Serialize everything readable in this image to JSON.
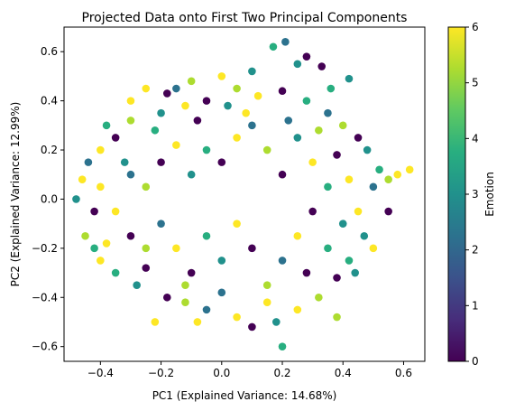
{
  "chart_data": {
    "type": "scatter",
    "title": "Projected Data onto First Two Principal Components",
    "xlabel": "PC1 (Explained Variance: 14.68%)",
    "ylabel": "PC2 (Explained Variance: 12.99%)",
    "xlim": [
      -0.52,
      0.67
    ],
    "ylim": [
      -0.66,
      0.7
    ],
    "xticks": [
      -0.4,
      -0.2,
      0.0,
      0.2,
      0.4,
      0.6
    ],
    "xtick_labels": [
      "−0.4",
      "−0.2",
      "0.0",
      "0.2",
      "0.4",
      "0.6"
    ],
    "yticks": [
      -0.6,
      -0.4,
      -0.2,
      0.0,
      0.2,
      0.4,
      0.6
    ],
    "ytick_labels": [
      "−0.6",
      "−0.4",
      "−0.2",
      "0.0",
      "0.2",
      "0.4",
      "0.6"
    ],
    "grid": false,
    "colorbar": {
      "label": "Emotion",
      "colormap": "viridis",
      "range": [
        0,
        6
      ],
      "ticks": [
        0,
        1,
        2,
        3,
        4,
        5,
        6
      ],
      "tick_labels": [
        "0",
        "1",
        "2",
        "3",
        "4",
        "5",
        "6"
      ]
    },
    "marker_shape": "circle",
    "points": [
      {
        "x": 0.21,
        "y": 0.64,
        "c": 2
      },
      {
        "x": 0.17,
        "y": 0.62,
        "c": 4
      },
      {
        "x": 0.0,
        "y": 0.5,
        "c": 6
      },
      {
        "x": -0.1,
        "y": 0.48,
        "c": 5
      },
      {
        "x": 0.42,
        "y": 0.49,
        "c": 3
      },
      {
        "x": 0.33,
        "y": 0.54,
        "c": 0
      },
      {
        "x": -0.3,
        "y": 0.4,
        "c": 6
      },
      {
        "x": -0.25,
        "y": 0.45,
        "c": 6
      },
      {
        "x": -0.18,
        "y": 0.43,
        "c": 0
      },
      {
        "x": 0.05,
        "y": 0.45,
        "c": 5
      },
      {
        "x": 0.1,
        "y": 0.52,
        "c": 3
      },
      {
        "x": 0.25,
        "y": 0.55,
        "c": 3
      },
      {
        "x": -0.38,
        "y": 0.3,
        "c": 4
      },
      {
        "x": -0.4,
        "y": 0.2,
        "c": 6
      },
      {
        "x": -0.44,
        "y": 0.15,
        "c": 2
      },
      {
        "x": -0.35,
        "y": 0.25,
        "c": 0
      },
      {
        "x": -0.3,
        "y": 0.32,
        "c": 5
      },
      {
        "x": -0.2,
        "y": 0.35,
        "c": 3
      },
      {
        "x": -0.12,
        "y": 0.38,
        "c": 6
      },
      {
        "x": -0.05,
        "y": 0.4,
        "c": 0
      },
      {
        "x": 0.02,
        "y": 0.38,
        "c": 3
      },
      {
        "x": 0.12,
        "y": 0.42,
        "c": 6
      },
      {
        "x": 0.2,
        "y": 0.44,
        "c": 0
      },
      {
        "x": 0.28,
        "y": 0.4,
        "c": 4
      },
      {
        "x": 0.35,
        "y": 0.35,
        "c": 2
      },
      {
        "x": 0.4,
        "y": 0.3,
        "c": 5
      },
      {
        "x": 0.45,
        "y": 0.25,
        "c": 0
      },
      {
        "x": 0.48,
        "y": 0.2,
        "c": 3
      },
      {
        "x": 0.52,
        "y": 0.12,
        "c": 4
      },
      {
        "x": 0.58,
        "y": 0.1,
        "c": 6
      },
      {
        "x": 0.62,
        "y": 0.12,
        "c": 6
      },
      {
        "x": 0.55,
        "y": 0.08,
        "c": 5
      },
      {
        "x": 0.5,
        "y": 0.05,
        "c": 2
      },
      {
        "x": 0.45,
        "y": -0.05,
        "c": 6
      },
      {
        "x": 0.47,
        "y": -0.15,
        "c": 3
      },
      {
        "x": 0.42,
        "y": -0.25,
        "c": 4
      },
      {
        "x": 0.38,
        "y": -0.32,
        "c": 0
      },
      {
        "x": 0.32,
        "y": -0.4,
        "c": 5
      },
      {
        "x": 0.25,
        "y": -0.45,
        "c": 6
      },
      {
        "x": 0.18,
        "y": -0.5,
        "c": 3
      },
      {
        "x": 0.1,
        "y": -0.52,
        "c": 0
      },
      {
        "x": 0.2,
        "y": -0.6,
        "c": 4
      },
      {
        "x": 0.05,
        "y": -0.48,
        "c": 6
      },
      {
        "x": -0.05,
        "y": -0.45,
        "c": 2
      },
      {
        "x": -0.12,
        "y": -0.42,
        "c": 5
      },
      {
        "x": -0.18,
        "y": -0.4,
        "c": 0
      },
      {
        "x": -0.22,
        "y": -0.5,
        "c": 6
      },
      {
        "x": -0.28,
        "y": -0.35,
        "c": 3
      },
      {
        "x": -0.35,
        "y": -0.3,
        "c": 4
      },
      {
        "x": -0.4,
        "y": -0.25,
        "c": 6
      },
      {
        "x": -0.45,
        "y": -0.15,
        "c": 5
      },
      {
        "x": -0.42,
        "y": -0.05,
        "c": 0
      },
      {
        "x": -0.48,
        "y": 0.0,
        "c": 3
      },
      {
        "x": -0.4,
        "y": 0.05,
        "c": 6
      },
      {
        "x": -0.3,
        "y": 0.1,
        "c": 2
      },
      {
        "x": -0.25,
        "y": 0.05,
        "c": 5
      },
      {
        "x": -0.2,
        "y": 0.15,
        "c": 0
      },
      {
        "x": -0.15,
        "y": 0.22,
        "c": 6
      },
      {
        "x": -0.1,
        "y": 0.1,
        "c": 3
      },
      {
        "x": -0.05,
        "y": 0.2,
        "c": 4
      },
      {
        "x": 0.0,
        "y": 0.15,
        "c": 0
      },
      {
        "x": 0.05,
        "y": 0.25,
        "c": 6
      },
      {
        "x": 0.1,
        "y": 0.3,
        "c": 2
      },
      {
        "x": 0.15,
        "y": 0.2,
        "c": 5
      },
      {
        "x": 0.2,
        "y": 0.1,
        "c": 0
      },
      {
        "x": 0.25,
        "y": 0.25,
        "c": 3
      },
      {
        "x": 0.3,
        "y": 0.15,
        "c": 6
      },
      {
        "x": 0.35,
        "y": 0.05,
        "c": 4
      },
      {
        "x": 0.3,
        "y": -0.05,
        "c": 0
      },
      {
        "x": 0.25,
        "y": -0.15,
        "c": 6
      },
      {
        "x": 0.2,
        "y": -0.25,
        "c": 2
      },
      {
        "x": 0.15,
        "y": -0.35,
        "c": 5
      },
      {
        "x": 0.1,
        "y": -0.2,
        "c": 0
      },
      {
        "x": 0.05,
        "y": -0.1,
        "c": 6
      },
      {
        "x": 0.0,
        "y": -0.25,
        "c": 3
      },
      {
        "x": -0.05,
        "y": -0.15,
        "c": 4
      },
      {
        "x": -0.1,
        "y": -0.3,
        "c": 0
      },
      {
        "x": -0.15,
        "y": -0.2,
        "c": 6
      },
      {
        "x": -0.2,
        "y": -0.1,
        "c": 2
      },
      {
        "x": -0.25,
        "y": -0.2,
        "c": 5
      },
      {
        "x": -0.3,
        "y": -0.15,
        "c": 0
      },
      {
        "x": -0.35,
        "y": -0.05,
        "c": 6
      },
      {
        "x": -0.32,
        "y": 0.15,
        "c": 3
      },
      {
        "x": -0.22,
        "y": 0.28,
        "c": 4
      },
      {
        "x": -0.08,
        "y": 0.32,
        "c": 0
      },
      {
        "x": 0.08,
        "y": 0.35,
        "c": 6
      },
      {
        "x": 0.22,
        "y": 0.32,
        "c": 2
      },
      {
        "x": 0.32,
        "y": 0.28,
        "c": 5
      },
      {
        "x": 0.38,
        "y": 0.18,
        "c": 0
      },
      {
        "x": 0.42,
        "y": 0.08,
        "c": 6
      },
      {
        "x": 0.4,
        "y": -0.1,
        "c": 3
      },
      {
        "x": 0.35,
        "y": -0.2,
        "c": 4
      },
      {
        "x": 0.28,
        "y": -0.3,
        "c": 0
      },
      {
        "x": 0.15,
        "y": -0.42,
        "c": 6
      },
      {
        "x": 0.0,
        "y": -0.38,
        "c": 2
      },
      {
        "x": -0.12,
        "y": -0.35,
        "c": 5
      },
      {
        "x": -0.25,
        "y": -0.28,
        "c": 0
      },
      {
        "x": -0.38,
        "y": -0.18,
        "c": 6
      },
      {
        "x": 0.38,
        "y": -0.48,
        "c": 5
      },
      {
        "x": 0.44,
        "y": -0.3,
        "c": 3
      },
      {
        "x": -0.08,
        "y": -0.5,
        "c": 6
      },
      {
        "x": 0.28,
        "y": 0.58,
        "c": 0
      },
      {
        "x": 0.36,
        "y": 0.45,
        "c": 4
      },
      {
        "x": -0.15,
        "y": 0.45,
        "c": 2
      },
      {
        "x": 0.5,
        "y": -0.2,
        "c": 6
      },
      {
        "x": 0.55,
        "y": -0.05,
        "c": 0
      },
      {
        "x": -0.46,
        "y": 0.08,
        "c": 6
      },
      {
        "x": -0.42,
        "y": -0.2,
        "c": 4
      }
    ]
  }
}
